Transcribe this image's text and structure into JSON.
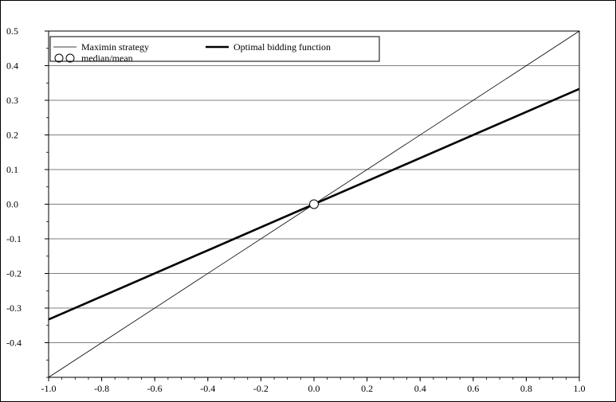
{
  "chart_data": {
    "type": "line",
    "title": "",
    "xlabel": "",
    "ylabel": "",
    "xlim": [
      -1.0,
      1.0
    ],
    "ylim": [
      -0.5,
      0.5
    ],
    "grid": "horizontal",
    "legend_position": "top-left",
    "x_ticks": [
      "-1.0",
      "-0.8",
      "-0.6",
      "-0.4",
      "-0.2",
      "0.0",
      "0.2",
      "0.4",
      "0.6",
      "0.8",
      "1.0"
    ],
    "y_ticks": [
      "0.5",
      "0.4",
      "0.3",
      "0.2",
      "0.1",
      "0.0",
      "-0.1",
      "-0.2",
      "-0.3",
      "-0.4"
    ],
    "series": [
      {
        "name": "Maximin strategy",
        "style": "thin",
        "x": [
          -1.0,
          1.0
        ],
        "y": [
          -0.5,
          0.5
        ]
      },
      {
        "name": "Optimal bidding function",
        "style": "thick",
        "x": [
          -1.0,
          1.0
        ],
        "y": [
          -0.333,
          0.333
        ]
      }
    ],
    "markers": [
      {
        "name": "median/mean",
        "x": 0.0,
        "y": 0.0,
        "shape": "circle"
      }
    ]
  }
}
